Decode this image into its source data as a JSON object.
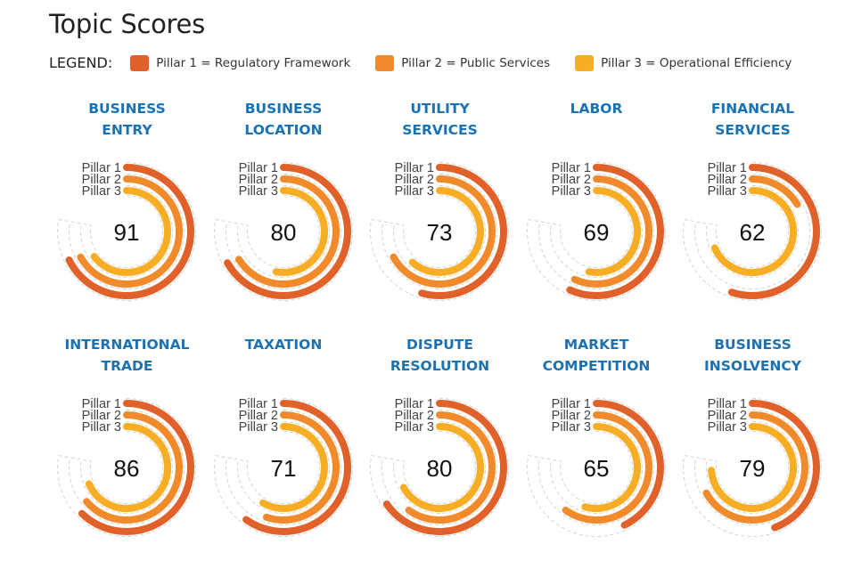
{
  "page": {
    "title": "Topic Scores",
    "legend_label": "LEGEND:",
    "legend": [
      {
        "label": "Pillar 1 = Regulatory Framework",
        "color": "#e0622a"
      },
      {
        "label": "Pillar 2 = Public Services",
        "color": "#f08a2a"
      },
      {
        "label": "Pillar 3 = Operational Efficiency",
        "color": "#f7ad24"
      }
    ],
    "pillar_labels": [
      "Pillar 1",
      "Pillar 2",
      "Pillar 3"
    ]
  },
  "chart_data": {
    "type": "radial-bar",
    "title": "Topic Scores",
    "value_range": [
      0,
      100
    ],
    "series_names": [
      "Pillar 1",
      "Pillar 2",
      "Pillar 3"
    ],
    "colors": [
      "#e0622a",
      "#f08a2a",
      "#f7ad24"
    ],
    "topics": [
      {
        "name": "BUSINESS ENTRY",
        "lines": [
          "BUSINESS",
          "ENTRY"
        ],
        "score": 91,
        "pillars": [
          87,
          86,
          83
        ]
      },
      {
        "name": "BUSINESS LOCATION",
        "lines": [
          "BUSINESS",
          "LOCATION"
        ],
        "score": 80,
        "pillars": [
          86,
          85,
          68
        ]
      },
      {
        "name": "UTILITY SERVICES",
        "lines": [
          "UTILITY",
          "SERVICES"
        ],
        "score": 73,
        "pillars": [
          70,
          86,
          79
        ]
      },
      {
        "name": "LABOR",
        "lines": [
          "LABOR",
          ""
        ],
        "score": 69,
        "pillars": [
          73,
          73,
          68
        ]
      },
      {
        "name": "FINANCIAL SERVICES",
        "lines": [
          "FINANCIAL",
          "SERVICES"
        ],
        "score": 62,
        "pillars": [
          71,
          21,
          88
        ]
      },
      {
        "name": "INTERNATIONAL TRADE",
        "lines": [
          "INTERNATIONAL",
          "TRADE"
        ],
        "score": 86,
        "pillars": [
          80,
          82,
          88
        ]
      },
      {
        "name": "TAXATION",
        "lines": [
          "TAXATION",
          ""
        ],
        "score": 71,
        "pillars": [
          77,
          71,
          75
        ]
      },
      {
        "name": "DISPUTE RESOLUTION",
        "lines": [
          "DISPUTE",
          "RESOLUTION"
        ],
        "score": 80,
        "pillars": [
          84,
          77,
          86
        ]
      },
      {
        "name": "MARKET COMPETITION",
        "lines": [
          "MARKET",
          "COMPETITION"
        ],
        "score": 65,
        "pillars": [
          55,
          77,
          70
        ]
      },
      {
        "name": "BUSINESS INSOLVENCY",
        "lines": [
          "BUSINESS",
          "INSOLVENCY"
        ],
        "score": 79,
        "pillars": [
          57,
          86,
          95
        ]
      }
    ]
  }
}
